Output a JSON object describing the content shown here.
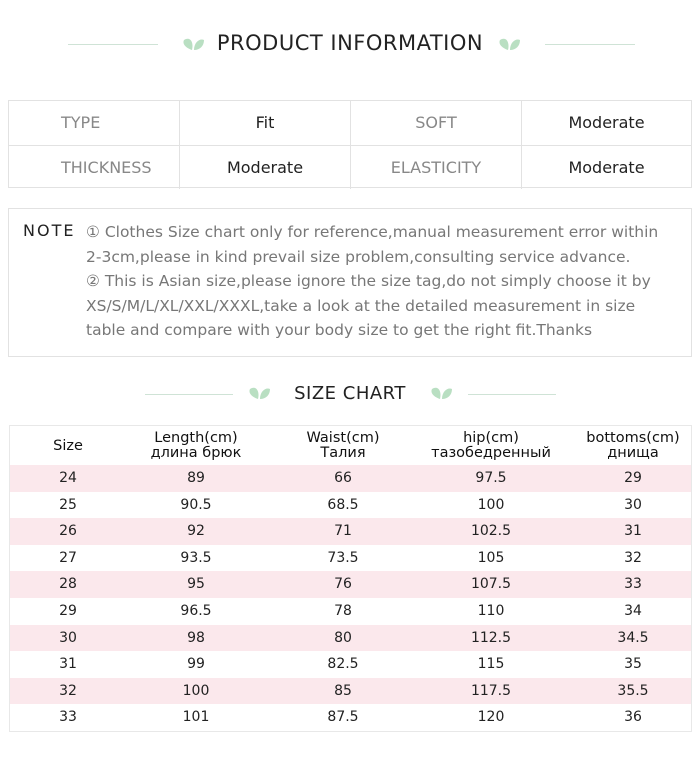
{
  "header": {
    "title": "PRODUCT INFORMATION"
  },
  "info": {
    "rows": [
      [
        "TYPE",
        "Fit",
        "SOFT",
        "Moderate"
      ],
      [
        "THICKNESS",
        "Moderate",
        "ELASTICITY",
        "Moderate"
      ]
    ]
  },
  "note": {
    "label": "NOTE",
    "items": [
      "① Clothes Size chart only for reference,manual measurement error within 2-3cm,please in kind prevail size problem,consulting service advance.",
      "② This is Asian size,please ignore the size tag,do not simply choose it by XS/S/M/L/XL/XXL/XXXL,take a look at the detailed measurement in size table and compare with your body size to get the right fit.Thanks"
    ]
  },
  "size_chart": {
    "title": "SIZE CHART",
    "columns": [
      {
        "label": "Size"
      },
      {
        "label": "Length(cm)",
        "sub": "длина брюк"
      },
      {
        "label": "Waist(cm)",
        "sub": "Талия"
      },
      {
        "label": "hip(cm)",
        "sub": "тазобедренный"
      },
      {
        "label": "bottoms(cm)",
        "sub": "днища"
      }
    ],
    "rows": [
      [
        24,
        89,
        66,
        97.5,
        29
      ],
      [
        25,
        90.5,
        68.5,
        100,
        30
      ],
      [
        26,
        92,
        71,
        102.5,
        31
      ],
      [
        27,
        93.5,
        73.5,
        105,
        32
      ],
      [
        28,
        95,
        76,
        107.5,
        33
      ],
      [
        29,
        96.5,
        78,
        110,
        34
      ],
      [
        30,
        98,
        80,
        112.5,
        34.5
      ],
      [
        31,
        99,
        82.5,
        115,
        35
      ],
      [
        32,
        100,
        85,
        117.5,
        35.5
      ],
      [
        33,
        101,
        87.5,
        120,
        36
      ]
    ]
  }
}
